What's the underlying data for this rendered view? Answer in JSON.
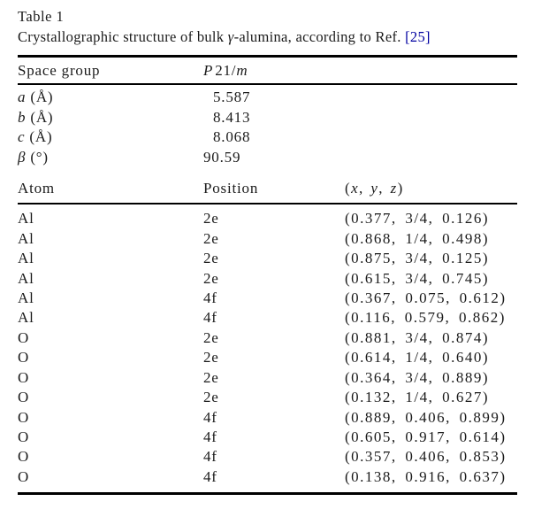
{
  "page": {
    "background": "#ffffff",
    "text_color": "#1b1b1b",
    "rule_color": "#000000",
    "link_color": "#0000a0"
  },
  "table": {
    "label": "Table 1",
    "caption": {
      "part1": "Crystallographic structure of bulk ",
      "gamma": "γ",
      "part2": "-alumina, according to Ref. ",
      "ref": "[25]"
    },
    "space_group": {
      "label": "Space group",
      "value_p": "P",
      "value_mid": "21/",
      "value_m": "m",
      "value_full": "P21/m"
    },
    "lattice_params": [
      {
        "symbol": "a",
        "unit": " (Å)",
        "value": "5.587"
      },
      {
        "symbol": "b",
        "unit": " (Å)",
        "value": "8.413"
      },
      {
        "symbol": "c",
        "unit": " (Å)",
        "value": "8.068"
      },
      {
        "symbol": "β",
        "unit": " (°)",
        "value": "90.59"
      }
    ],
    "atoms": {
      "headers": {
        "atom": "Atom",
        "position": "Position",
        "xyz": {
          "open": "(",
          "x": "x",
          "sep1": ", ",
          "y": "y",
          "sep2": ", ",
          "z": "z",
          "close": ")"
        }
      },
      "rows": [
        {
          "atom": "Al",
          "position": "2e",
          "xyz": "(0.377, 3/4, 0.126)"
        },
        {
          "atom": "Al",
          "position": "2e",
          "xyz": "(0.868, 1/4, 0.498)"
        },
        {
          "atom": "Al",
          "position": "2e",
          "xyz": "(0.875, 3/4, 0.125)"
        },
        {
          "atom": "Al",
          "position": "2e",
          "xyz": "(0.615, 3/4, 0.745)"
        },
        {
          "atom": "Al",
          "position": "4f",
          "xyz": "(0.367, 0.075, 0.612)"
        },
        {
          "atom": "Al",
          "position": "4f",
          "xyz": "(0.116, 0.579, 0.862)"
        },
        {
          "atom": "O",
          "position": "2e",
          "xyz": "(0.881, 3/4, 0.874)"
        },
        {
          "atom": "O",
          "position": "2e",
          "xyz": "(0.614, 1/4, 0.640)"
        },
        {
          "atom": "O",
          "position": "2e",
          "xyz": "(0.364, 3/4, 0.889)"
        },
        {
          "atom": "O",
          "position": "2e",
          "xyz": "(0.132, 1/4, 0.627)"
        },
        {
          "atom": "O",
          "position": "4f",
          "xyz": "(0.889, 0.406, 0.899)"
        },
        {
          "atom": "O",
          "position": "4f",
          "xyz": "(0.605, 0.917, 0.614)"
        },
        {
          "atom": "O",
          "position": "4f",
          "xyz": "(0.357, 0.406, 0.853)"
        },
        {
          "atom": "O",
          "position": "4f",
          "xyz": "(0.138, 0.916, 0.637)"
        }
      ]
    }
  }
}
